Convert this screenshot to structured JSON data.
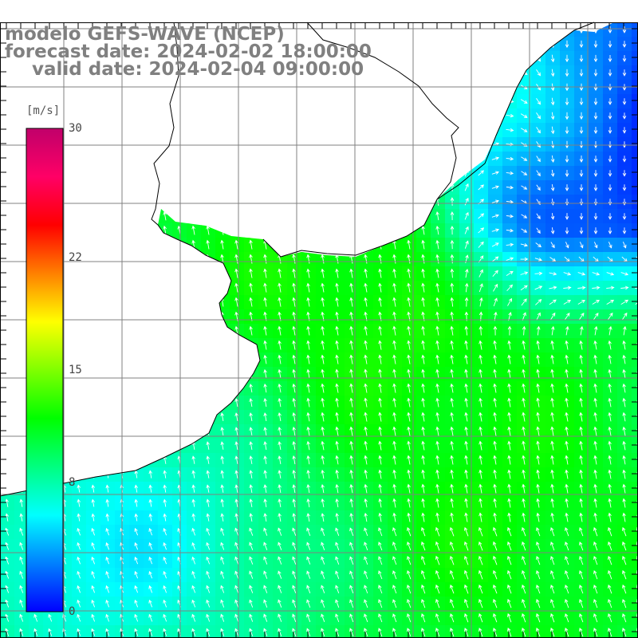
{
  "title": {
    "line1": "modelo GEFS-WAVE (NCEP)",
    "line2": "forecast date: 2024-02-02 18:00:00",
    "line3": "valid date: 2024-02-04 09:00:00"
  },
  "colorbar": {
    "unit": "[m/s]",
    "ticks": [
      {
        "label": "30",
        "value": 30
      },
      {
        "label": "22",
        "value": 22
      },
      {
        "label": "15",
        "value": 15
      },
      {
        "label": "8",
        "value": 8
      },
      {
        "label": "0",
        "value": 0
      }
    ],
    "range": [
      0,
      30
    ],
    "stops": [
      "#0000ff",
      "#0080ff",
      "#00ffff",
      "#00ff80",
      "#00ff00",
      "#80ff00",
      "#ffff00",
      "#ff8000",
      "#ff0000",
      "#ff0066",
      "#c0006a"
    ]
  },
  "map": {
    "field": "wind speed",
    "colors": {
      "land": "#ffffff",
      "grid": "#808080",
      "coast": "#000000",
      "arrow": "#ffffff"
    }
  }
}
